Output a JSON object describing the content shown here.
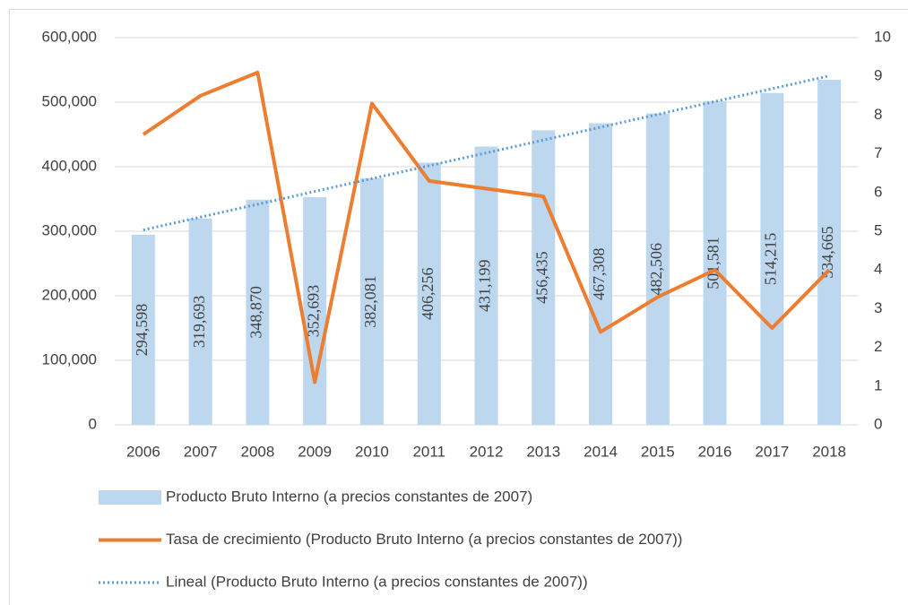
{
  "chart_data": {
    "type": "bar",
    "categories": [
      "2006",
      "2007",
      "2008",
      "2009",
      "2010",
      "2011",
      "2012",
      "2013",
      "2014",
      "2015",
      "2016",
      "2017",
      "2018"
    ],
    "series": [
      {
        "name": "Producto Bruto Interno (a precios constantes de 2007)",
        "type": "bar",
        "color": "#bdd7ee",
        "values": [
          294598,
          319693,
          348870,
          352693,
          382081,
          406256,
          431199,
          456435,
          467308,
          482506,
          501581,
          514215,
          534665
        ],
        "value_labels": [
          "294,598",
          "319,693",
          "348,870",
          "352,693",
          "382,081",
          "406,256",
          "431,199",
          "456,435",
          "467,308",
          "482,506",
          "501,581",
          "514,215",
          "534,665"
        ]
      },
      {
        "name": "Tasa de crecimiento (Producto Bruto Interno (a precios constantes de 2007))",
        "type": "line",
        "axis": "y2",
        "color": "#ed7d31",
        "values": [
          7.5,
          8.5,
          9.1,
          1.1,
          8.3,
          6.3,
          6.1,
          5.9,
          2.4,
          3.3,
          4.0,
          2.5,
          4.0
        ]
      },
      {
        "name": "Lineal (Producto Bruto Interno (a precios constantes de 2007))",
        "type": "line",
        "style": "dotted",
        "color": "#5b9bd5",
        "values": [
          302000,
          321900,
          341800,
          361700,
          381600,
          401500,
          421400,
          441300,
          461200,
          481100,
          501000,
          520900,
          540800
        ]
      }
    ],
    "ylim": [
      0,
      600000
    ],
    "yticks": [
      0,
      {
        "value": 100000,
        "label": "100,000"
      },
      {
        "value": 200000,
        "label": "200,000"
      },
      {
        "value": 300000,
        "label": "300,000"
      },
      {
        "value": 400000,
        "label": "400,000"
      },
      {
        "value": 500000,
        "label": "500,000"
      },
      {
        "value": 600000,
        "label": "600,000"
      }
    ],
    "y2lim": [
      0,
      10
    ],
    "y2ticks": [
      0,
      1,
      2,
      3,
      4,
      5,
      6,
      7,
      8,
      9,
      10
    ],
    "grid": true
  }
}
